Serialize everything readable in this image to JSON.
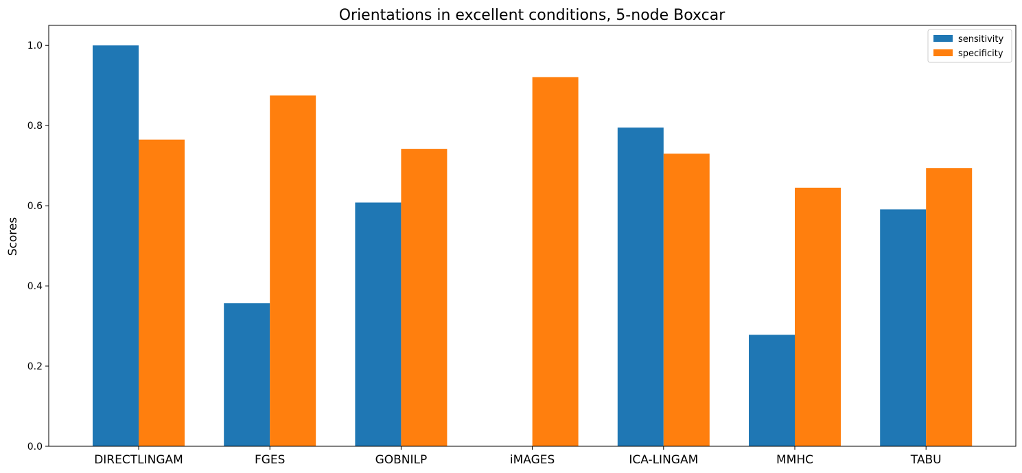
{
  "chart_data": {
    "type": "bar",
    "title": "Orientations in excellent conditions, 5-node Boxcar",
    "xlabel": "",
    "ylabel": "Scores",
    "categories": [
      "DIRECTLINGAM",
      "FGES",
      "GOBNILP",
      "iMAGES",
      "ICA-LINGAM",
      "MMHC",
      "TABU"
    ],
    "series": [
      {
        "name": "sensitivity",
        "color": "#1f77b4",
        "values": [
          1.0,
          0.357,
          0.608,
          0.0,
          0.795,
          0.278,
          0.591
        ]
      },
      {
        "name": "specificity",
        "color": "#ff7f0e",
        "values": [
          0.765,
          0.875,
          0.742,
          0.921,
          0.73,
          0.645,
          0.694
        ]
      }
    ],
    "ylim": [
      0,
      1.05
    ],
    "yticks": [
      "0.0",
      "0.2",
      "0.4",
      "0.6",
      "0.8",
      "1.0"
    ],
    "legend": "top-right",
    "grid": false
  }
}
